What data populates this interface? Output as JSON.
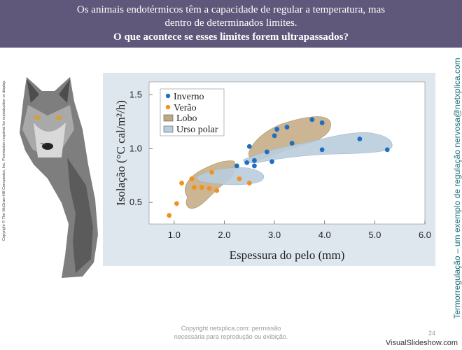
{
  "header": {
    "line1": "Os animais endotérmicos têm a capacidade de regular a temperatura, mas",
    "line2": "dentro de determinados limites.",
    "line3": "O que acontece se esses limites forem ultrapassados?"
  },
  "side_copyright": "Copyright © The McGraw-Hill Companies, Inc. Permission required for reproduction or display.",
  "side_title": "Termorregulação – um exemplo de regulação nervosa@netxplica.com",
  "footer": {
    "copyright_line1": "Copyright netxplica.com: permissão",
    "copyright_line2": "necessária para reprodução ou exibição.",
    "page_number": "24",
    "brand": "VisualSlideshow.com"
  },
  "colors": {
    "header_bg": "#5f587a",
    "inverno": "#1f6fc0",
    "verao": "#f0931e",
    "lobo": "#c2a880",
    "urso": "#b9cddd",
    "title_teal": "#1f6f73"
  },
  "chart_data": {
    "type": "scatter",
    "xlabel": "Espessura do pelo (mm)",
    "ylabel": "Isolação (°C cal/m²/h)",
    "xlim": [
      0.5,
      6.0
    ],
    "ylim": [
      0.3,
      1.62
    ],
    "xticks": [
      "1.0",
      "2.0",
      "3.0",
      "4.0",
      "5.0",
      "6.0"
    ],
    "yticks": [
      "0.5",
      "1.0",
      "1.5"
    ],
    "series": [
      {
        "name": "Inverno",
        "color": "#1f6fc0",
        "points": [
          [
            2.25,
            0.84
          ],
          [
            2.45,
            0.87
          ],
          [
            2.5,
            1.02
          ],
          [
            2.6,
            0.89
          ],
          [
            2.6,
            0.84
          ],
          [
            2.85,
            0.97
          ],
          [
            2.95,
            0.88
          ],
          [
            3.0,
            1.12
          ],
          [
            3.05,
            1.18
          ],
          [
            3.25,
            1.2
          ],
          [
            3.35,
            1.05
          ],
          [
            3.75,
            1.27
          ],
          [
            3.95,
            0.99
          ],
          [
            3.95,
            1.24
          ],
          [
            4.7,
            1.09
          ],
          [
            5.25,
            0.99
          ]
        ]
      },
      {
        "name": "Verão",
        "color": "#f0931e",
        "points": [
          [
            0.9,
            0.38
          ],
          [
            1.05,
            0.49
          ],
          [
            1.15,
            0.68
          ],
          [
            1.35,
            0.72
          ],
          [
            1.4,
            0.64
          ],
          [
            1.55,
            0.64
          ],
          [
            1.7,
            0.63
          ],
          [
            1.75,
            0.78
          ],
          [
            1.85,
            0.61
          ],
          [
            2.3,
            0.72
          ],
          [
            2.5,
            0.68
          ]
        ]
      },
      {
        "name": "Lobo",
        "type": "region",
        "color": "#c2a880"
      },
      {
        "name": "Urso polar",
        "type": "region",
        "color": "#b9cddd"
      }
    ],
    "legend": "top-left",
    "grid": false
  }
}
